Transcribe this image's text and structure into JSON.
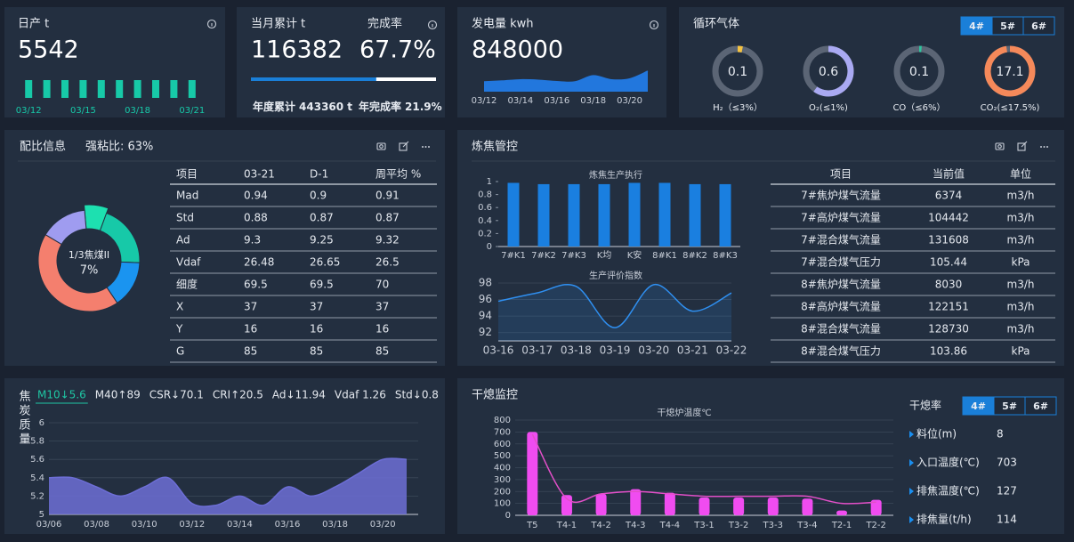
{
  "kpi": {
    "daily": {
      "title": "日产 t",
      "value": 5542
    },
    "monthly": {
      "title": "当月累计 t",
      "value": 116382,
      "rate_title": "完成率",
      "rate": 67.7,
      "rate_label": "67.7%",
      "annual_label": "年度累计",
      "annual": "443360 t",
      "annual_rate_label": "年完成率",
      "annual_rate": "21.9%"
    },
    "power": {
      "title": "发电量 kwh",
      "value": 848000
    }
  },
  "gas": {
    "title": "循环气体",
    "tabs": [
      "4#",
      "5#",
      "6#"
    ]
  },
  "ratio": {
    "title": "配比信息",
    "note": "强粘比: 63%",
    "table": {
      "header": [
        "项目",
        "03-21",
        "D-1",
        "周平均 %"
      ],
      "rows": [
        [
          "Mad",
          0.94,
          0.9,
          0.91
        ],
        [
          "Std",
          0.88,
          0.87,
          0.87
        ],
        [
          "Ad",
          9.3,
          9.25,
          9.32
        ],
        [
          "Vdaf",
          26.48,
          26.65,
          26.5
        ],
        [
          "细度",
          69.5,
          69.5,
          70
        ],
        [
          "X",
          37,
          37,
          37
        ],
        [
          "Y",
          16,
          16,
          16
        ],
        [
          "G",
          85,
          85,
          85
        ]
      ]
    }
  },
  "coking": {
    "title": "炼焦管控",
    "table": {
      "header": [
        "项目",
        "当前值",
        "单位"
      ],
      "rows": [
        [
          "7#焦炉煤气流量",
          6374,
          "m3/h"
        ],
        [
          "7#高炉煤气流量",
          104442,
          "m3/h"
        ],
        [
          "7#混合煤气流量",
          131608,
          "m3/h"
        ],
        [
          "7#混合煤气压力",
          105.44,
          "kPa"
        ],
        [
          "8#焦炉煤气流量",
          8030,
          "m3/h"
        ],
        [
          "8#高炉煤气流量",
          122151,
          "m3/h"
        ],
        [
          "8#混合煤气流量",
          128730,
          "m3/h"
        ],
        [
          "8#混合煤气压力",
          103.86,
          "kPa"
        ]
      ]
    }
  },
  "quality": {
    "title": "焦炭质量",
    "tabs": [
      "M10↓5.6",
      "M40↑89",
      "CSR↓70.1",
      "CRI↑20.5",
      "Ad↓11.94",
      "Vdaf 1.26",
      "Std↓0.8"
    ]
  },
  "cdq": {
    "title": "干熄监控",
    "rate_title": "干熄率",
    "tabs": [
      "4#",
      "5#",
      "6#"
    ],
    "items": [
      {
        "label": "料位(m)",
        "value": 8
      },
      {
        "label": "入口温度(℃)",
        "value": 703
      },
      {
        "label": "排焦温度(℃)",
        "value": 127
      },
      {
        "label": "排焦量(t/h)",
        "value": 114
      }
    ]
  },
  "chart_data": [
    {
      "type": "bar",
      "categories": [
        "03/12",
        null,
        null,
        "03/15",
        null,
        null,
        "03/18",
        null,
        null,
        "03/21"
      ],
      "values": [
        5500,
        5500,
        5500,
        5500,
        5500,
        5500,
        5500,
        5500,
        5500,
        5500
      ],
      "color": "#17c9a8"
    },
    {
      "type": "area",
      "categories": [
        "03/12",
        null,
        "03/14",
        null,
        "03/16",
        null,
        "03/18",
        null,
        "03/20",
        null
      ],
      "values": [
        430000,
        470000,
        520000,
        500000,
        440000,
        430000,
        700000,
        520000,
        560000,
        900000
      ],
      "color": "#2277dd",
      "smooth": true
    },
    {
      "type": "gauge",
      "categories": [
        "H₂（≤3%）",
        "O₂(≤1%)",
        "CO（≤6%）",
        "CO₂(≤17.5%)"
      ],
      "values": [
        0.1,
        0.6,
        0.1,
        17.1
      ],
      "max": [
        3,
        1,
        6,
        17.5
      ],
      "colors": [
        "#f5c342",
        "#a9a9f2",
        "#2fc49e",
        "#f5895a"
      ]
    },
    {
      "type": "pie",
      "categories": [
        "1/3焦煤II",
        null,
        null,
        null,
        null
      ],
      "values": [
        7,
        20,
        15,
        43,
        15
      ],
      "value_labels": [
        "7%",
        null,
        null,
        null,
        null
      ],
      "colors": [
        "#1de0b0",
        "#17c9a8",
        "#1a94f0",
        "#f47f6e",
        "#9f9cf0"
      ]
    },
    {
      "type": "bar",
      "title": "炼焦生产执行",
      "categories": [
        "7#K1",
        "7#K2",
        "7#K3",
        "K均",
        "K安",
        "8#K1",
        "8#K2",
        "8#K3"
      ],
      "values": [
        0.98,
        0.96,
        0.96,
        0.96,
        0.98,
        0.98,
        0.96,
        0.96
      ],
      "color": "#1a7fe0",
      "ylim": [
        0,
        1
      ],
      "yticks": [
        0,
        0.2,
        0.4,
        0.6,
        0.8,
        1
      ],
      "grid": false
    },
    {
      "type": "line",
      "title": "生产评价指数",
      "categories": [
        "03-16",
        "03-17",
        "03-18",
        "03-19",
        "03-20",
        "03-21",
        "03-22"
      ],
      "values": [
        95.8,
        96.8,
        97.6,
        92.6,
        97.8,
        94.6,
        96.8
      ],
      "color": "#2f8ff0",
      "ylim": [
        91,
        98
      ],
      "yticks": [
        92,
        94,
        96,
        98
      ],
      "grid": true,
      "smooth": true
    },
    {
      "type": "area",
      "categories": [
        "03/06",
        null,
        "03/08",
        null,
        "03/10",
        null,
        "03/12",
        null,
        "03/14",
        null,
        "03/16",
        null,
        "03/18",
        null,
        "03/20",
        null
      ],
      "values": [
        5.4,
        5.4,
        5.3,
        5.2,
        5.3,
        5.4,
        5.12,
        5.1,
        5.2,
        5.1,
        5.3,
        5.2,
        5.3,
        5.45,
        5.6,
        5.6
      ],
      "color": "#6d6ed6",
      "ylim": [
        5,
        6
      ],
      "yticks": [
        5,
        5.2,
        5.4,
        5.6,
        5.8,
        6
      ],
      "grid": true,
      "smooth": true
    },
    {
      "type": "combo",
      "title": "干熄炉温度℃",
      "categories": [
        "T5",
        "T4-1",
        "T4-2",
        "T4-3",
        "T4-4",
        "T3-1",
        "T3-2",
        "T3-3",
        "T3-4",
        "T2-1",
        "T2-2"
      ],
      "ylim": [
        0,
        800
      ],
      "yticks": [
        0,
        100,
        200,
        300,
        400,
        500,
        600,
        700,
        800
      ],
      "grid": true,
      "series": [
        {
          "type": "bar",
          "color": "#f04cf0",
          "values": [
            700,
            170,
            180,
            220,
            190,
            150,
            150,
            150,
            140,
            40,
            130
          ]
        },
        {
          "type": "line",
          "color": "#e24fc8",
          "values": [
            680,
            140,
            180,
            200,
            180,
            160,
            160,
            160,
            160,
            100,
            110
          ]
        }
      ]
    }
  ]
}
